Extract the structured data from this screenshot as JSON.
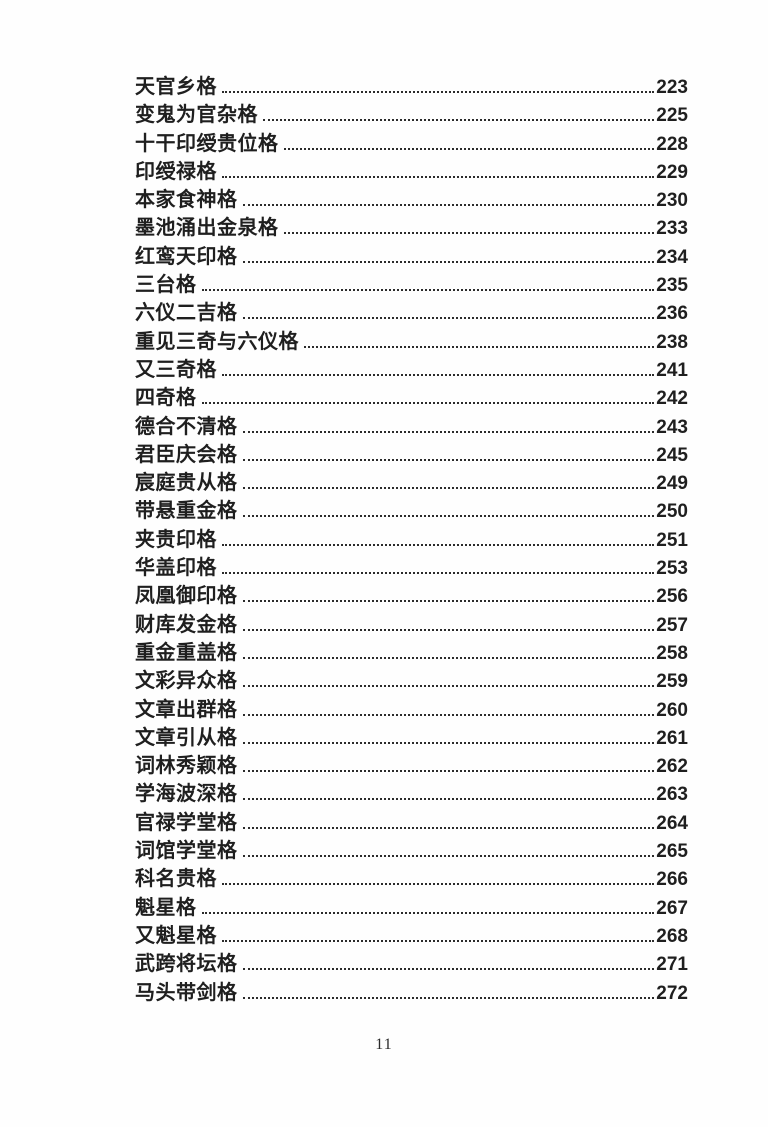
{
  "page": {
    "folio": "11"
  },
  "toc": {
    "entries": [
      {
        "title": "天官乡格",
        "page": "223"
      },
      {
        "title": "变鬼为官杂格",
        "page": "225"
      },
      {
        "title": "十干印绶贵位格",
        "page": "228"
      },
      {
        "title": "印绶禄格",
        "page": "229"
      },
      {
        "title": "本家食神格",
        "page": "230"
      },
      {
        "title": "墨池涌出金泉格",
        "page": "233"
      },
      {
        "title": "红鸾天印格",
        "page": "234"
      },
      {
        "title": "三台格",
        "page": "235"
      },
      {
        "title": "六仪二吉格",
        "page": "236"
      },
      {
        "title": "重见三奇与六仪格",
        "page": "238"
      },
      {
        "title": "又三奇格",
        "page": "241"
      },
      {
        "title": "四奇格",
        "page": "242"
      },
      {
        "title": "德合不清格",
        "page": "243"
      },
      {
        "title": "君臣庆会格",
        "page": "245"
      },
      {
        "title": "宸庭贵从格",
        "page": "249"
      },
      {
        "title": "带悬重金格",
        "page": "250"
      },
      {
        "title": "夹贵印格",
        "page": "251"
      },
      {
        "title": "华盖印格",
        "page": "253"
      },
      {
        "title": "凤凰御印格",
        "page": "256"
      },
      {
        "title": "财库发金格",
        "page": "257"
      },
      {
        "title": "重金重盖格",
        "page": "258"
      },
      {
        "title": "文彩异众格",
        "page": "259"
      },
      {
        "title": "文章出群格",
        "page": "260"
      },
      {
        "title": "文章引从格",
        "page": "261"
      },
      {
        "title": "词林秀颖格",
        "page": "262"
      },
      {
        "title": "学海波深格",
        "page": "263"
      },
      {
        "title": "官禄学堂格",
        "page": "264"
      },
      {
        "title": "词馆学堂格",
        "page": "265"
      },
      {
        "title": "科名贵格",
        "page": "266"
      },
      {
        "title": "魁星格",
        "page": "267"
      },
      {
        "title": "又魁星格",
        "page": "268"
      },
      {
        "title": "武跨将坛格",
        "page": "271"
      },
      {
        "title": "马头带剑格",
        "page": "272"
      }
    ]
  }
}
